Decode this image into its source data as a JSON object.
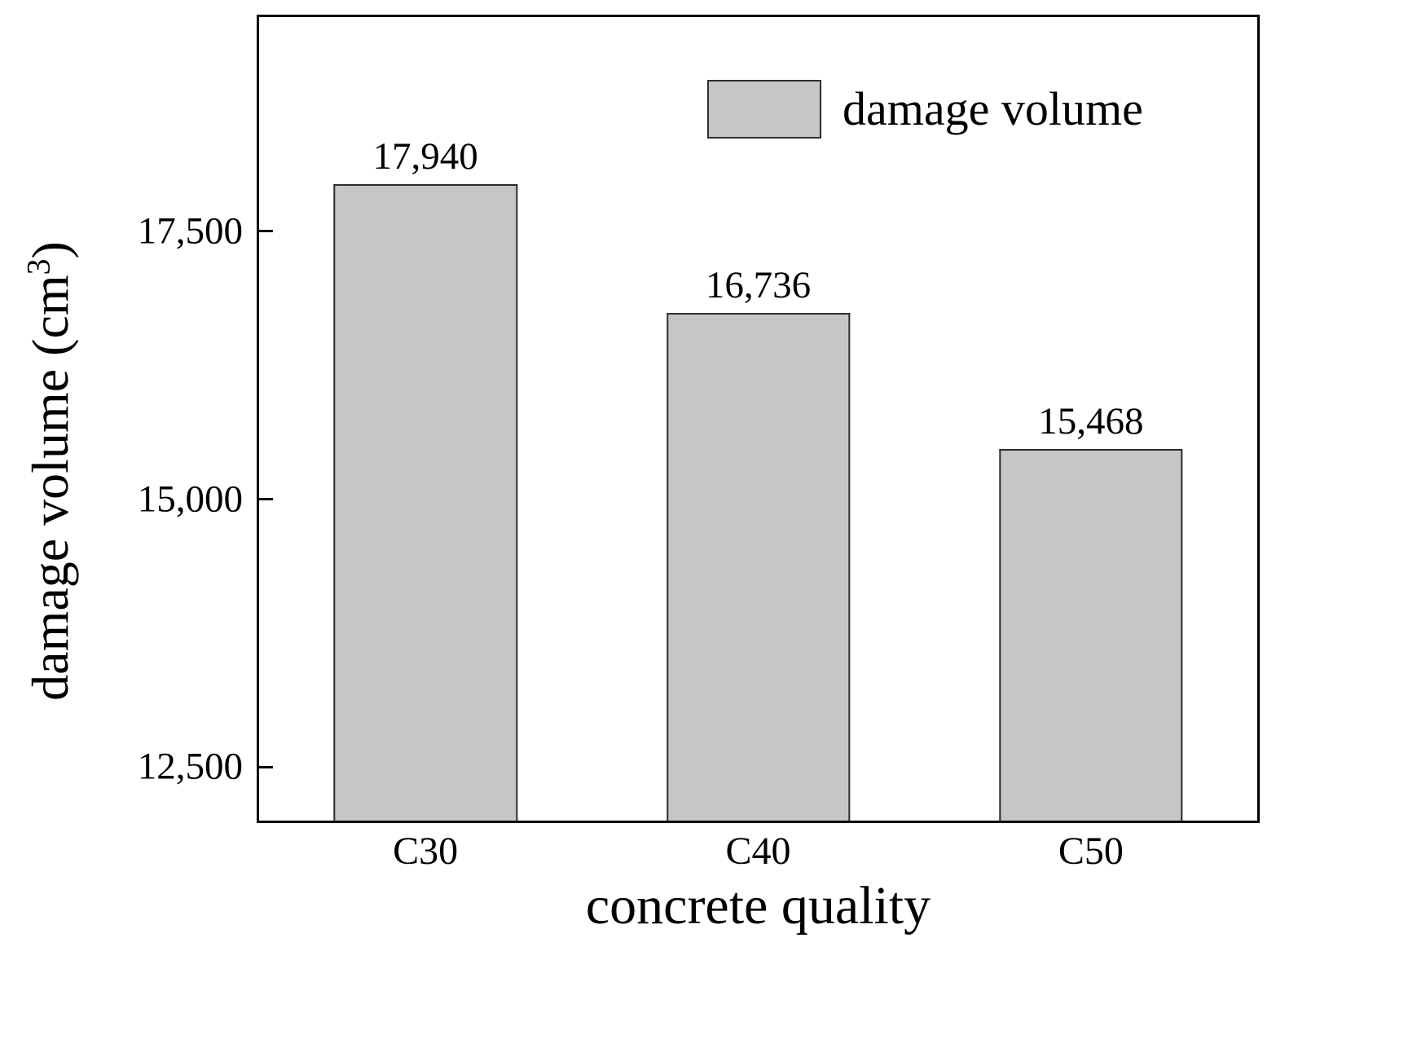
{
  "figure": {
    "background_color": "#ffffff",
    "text_color": "#000000"
  },
  "chart_data": {
    "type": "bar",
    "title": "",
    "categories": [
      "C30",
      "C40",
      "C50"
    ],
    "values": [
      17940,
      16736,
      15468
    ],
    "value_labels": [
      "17,940",
      "16,736",
      "15,468"
    ],
    "xlabel": "concrete quality",
    "ylabel": "damage volume (cm³)",
    "ylabel_parts": {
      "pre": "damage volume (cm",
      "sup": "3",
      "post": ")"
    },
    "ylim": [
      12000,
      19500
    ],
    "yticks": [
      12500,
      15000,
      17500
    ],
    "ytick_labels": [
      "12,500",
      "15,000",
      "17,500"
    ],
    "bar_color": "#c6c6c6",
    "bar_border_color": "#2e2e2e",
    "grid": false,
    "legend": {
      "position": "top-center",
      "entries": [
        {
          "label": "damage volume",
          "swatch_color": "#c6c6c6"
        }
      ]
    }
  }
}
